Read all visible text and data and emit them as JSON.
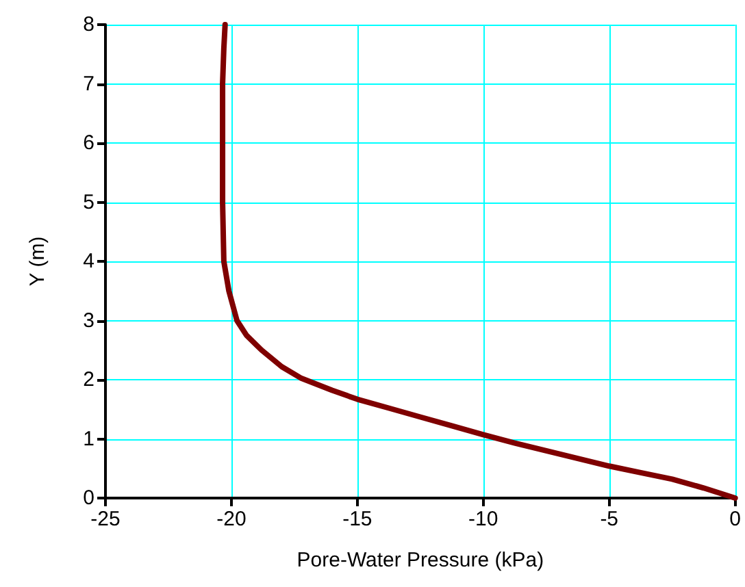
{
  "chart_data": {
    "type": "line",
    "xlabel": "Pore-Water Pressure (kPa)",
    "ylabel": "Y (m)",
    "series": [
      {
        "color": "#7f0000",
        "x": [
          0,
          -1.25,
          -2.5,
          -3.75,
          -5,
          -6.25,
          -7.5,
          -8.75,
          -10,
          -11.25,
          -12.5,
          -13.75,
          -15,
          -16,
          -17.25,
          -18,
          -18.8,
          -19.4,
          -19.78,
          -20.1,
          -20.3,
          -20.35,
          -20.35,
          -20.35,
          -20.3,
          -20.25
        ],
        "values": [
          0,
          0.17,
          0.32,
          0.43,
          0.54,
          0.67,
          0.8,
          0.93,
          1.07,
          1.22,
          1.37,
          1.52,
          1.67,
          1.82,
          2.03,
          2.22,
          2.5,
          2.75,
          3,
          3.5,
          4,
          5,
          6,
          7,
          7.6,
          8
        ]
      }
    ],
    "xlim": [
      -25,
      0
    ],
    "xticks": [
      -25,
      -20,
      -15,
      -10,
      -5,
      0
    ],
    "ylim": [
      0,
      8
    ],
    "yticks": [
      0,
      1,
      2,
      3,
      4,
      5,
      6,
      7,
      8
    ],
    "grid": true,
    "marker": "none",
    "line_style": "solid"
  }
}
